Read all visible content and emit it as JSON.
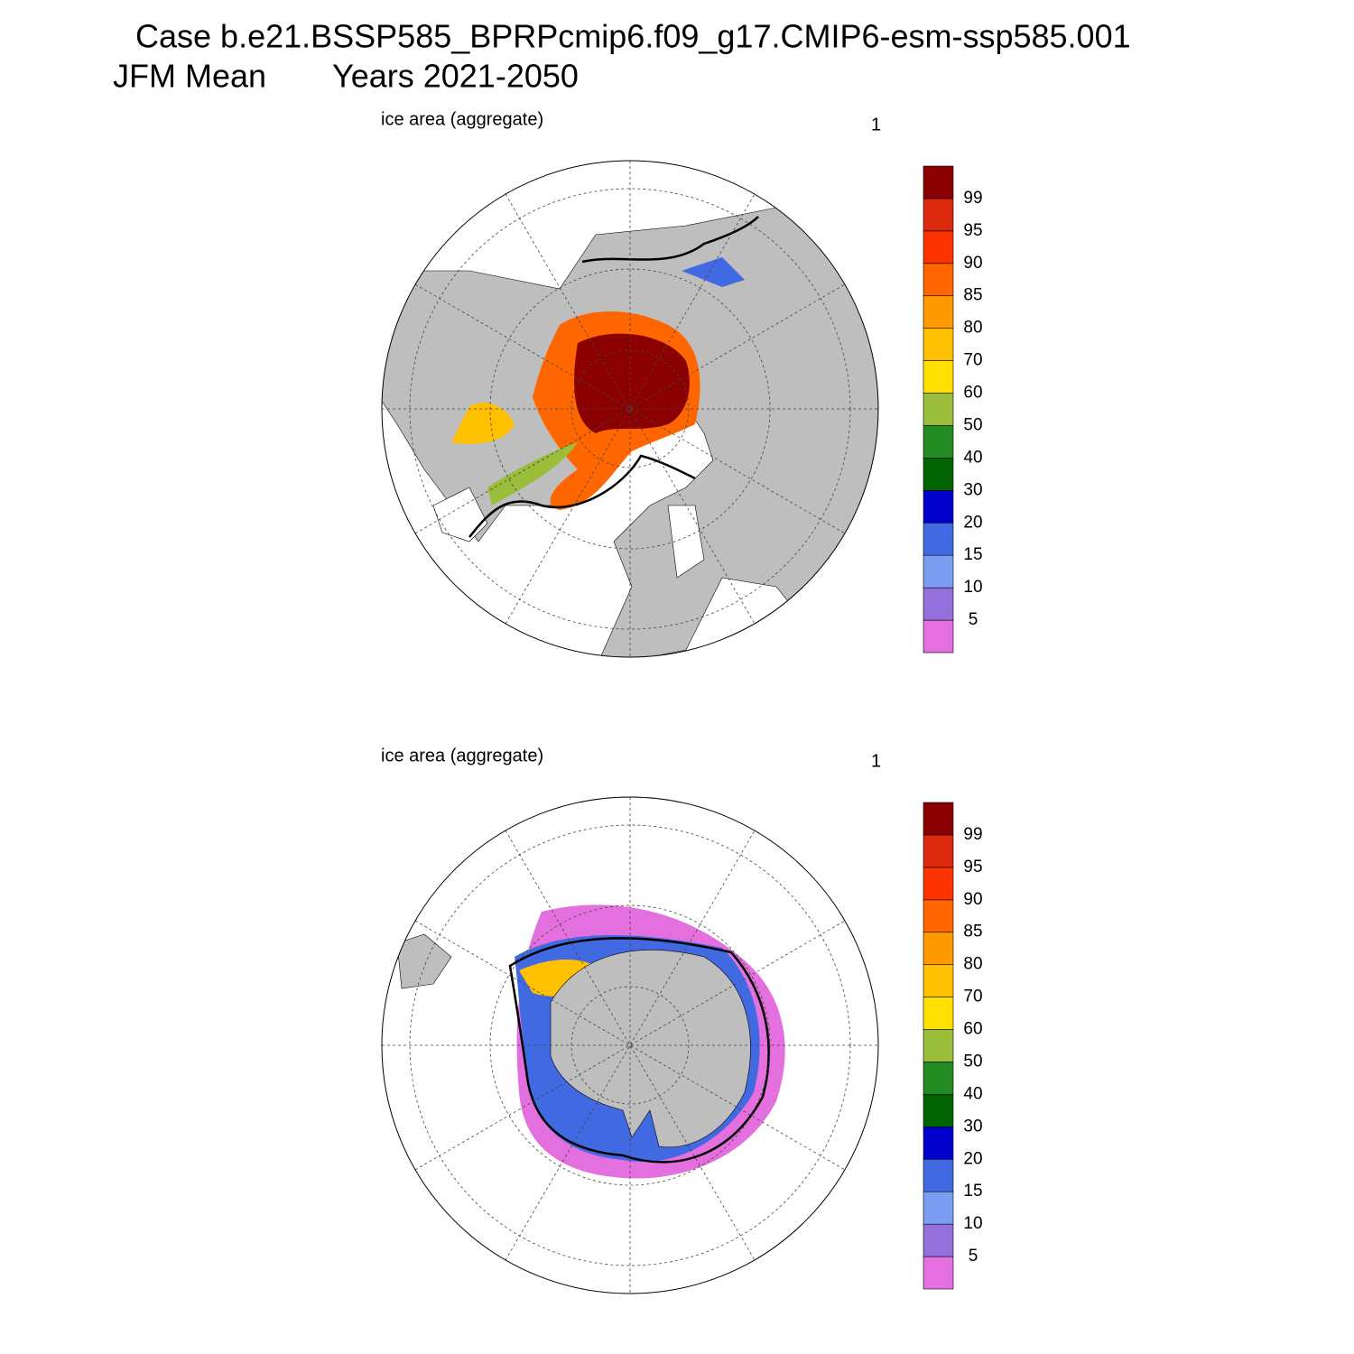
{
  "header": {
    "title_line1": "Case b.e21.BSSP585_BPRPcmip6.f09_g17.CMIP6-esm-ssp585.001",
    "title_line2": "JFM Mean",
    "title_years": "Years 2021-2050"
  },
  "panels": [
    {
      "title": "ice area  (aggregate)",
      "label": "1"
    },
    {
      "title": "ice area  (aggregate)",
      "label": "1"
    }
  ],
  "colorbar": {
    "levels": [
      5,
      10,
      15,
      20,
      30,
      40,
      50,
      60,
      70,
      80,
      85,
      90,
      95,
      99
    ],
    "colors": [
      "#e46fdf",
      "#9370db",
      "#7b9ef2",
      "#4169e1",
      "#0000cd",
      "#006400",
      "#228b22",
      "#9abd3a",
      "#ffe000",
      "#ffc000",
      "#ff9900",
      "#ff6600",
      "#ff3300",
      "#dc2a0e",
      "#8b0000"
    ]
  }
}
